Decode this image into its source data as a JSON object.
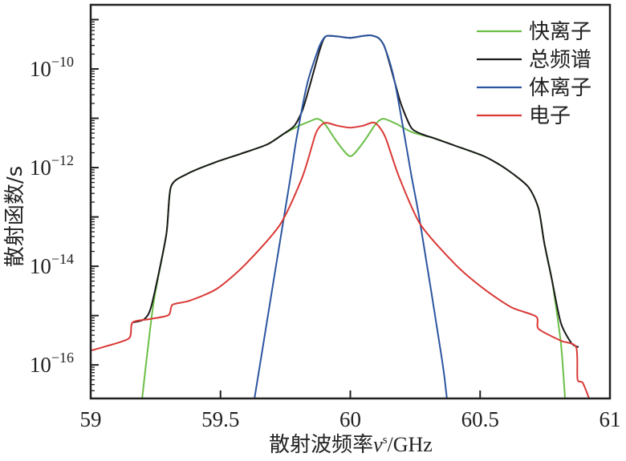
{
  "chart_data": {
    "type": "line",
    "title": "",
    "xlabel_main": "散射波频率",
    "xlabel_symbol": "ν",
    "xlabel_sup": "s",
    "xlabel_unit": "/GHz",
    "ylabel": "散射函数/s",
    "xlim": [
      59,
      61
    ],
    "ylim_log10": [
      -16.68,
      -8.7
    ],
    "yscale": "log",
    "grid": false,
    "legend_position": "top-right",
    "x_ticks": [
      {
        "value": 59,
        "label": "59"
      },
      {
        "value": 59.5,
        "label": "59.5"
      },
      {
        "value": 60,
        "label": "60"
      },
      {
        "value": 60.5,
        "label": "60.5"
      },
      {
        "value": 61,
        "label": "61"
      }
    ],
    "y_ticks": [
      {
        "exp": -10,
        "base": "10",
        "sup": "−10"
      },
      {
        "exp": -12,
        "base": "10",
        "sup": "−12"
      },
      {
        "exp": -14,
        "base": "10",
        "sup": "−14"
      },
      {
        "exp": -16,
        "base": "10",
        "sup": "−16"
      }
    ],
    "series": [
      {
        "name": "快离子",
        "color": "#6bbf47",
        "points_x_log10y": [
          [
            59.198,
            -16.68
          ],
          [
            59.241,
            -14.78
          ],
          [
            59.291,
            -13.37
          ],
          [
            59.309,
            -12.39
          ],
          [
            59.371,
            -12.13
          ],
          [
            59.476,
            -11.9
          ],
          [
            59.578,
            -11.72
          ],
          [
            59.68,
            -11.53
          ],
          [
            59.742,
            -11.32
          ],
          [
            59.804,
            -11.15
          ],
          [
            59.845,
            -11.06
          ],
          [
            59.872,
            -11.01
          ],
          [
            59.9,
            -11.1
          ],
          [
            59.949,
            -11.48
          ],
          [
            60.0,
            -11.77
          ],
          [
            60.051,
            -11.48
          ],
          [
            60.1,
            -11.1
          ],
          [
            60.128,
            -11.01
          ],
          [
            60.18,
            -11.12
          ],
          [
            60.236,
            -11.28
          ],
          [
            60.32,
            -11.4
          ],
          [
            60.406,
            -11.56
          ],
          [
            60.515,
            -11.77
          ],
          [
            60.598,
            -12.02
          ],
          [
            60.685,
            -12.39
          ],
          [
            60.725,
            -12.83
          ],
          [
            60.747,
            -13.53
          ],
          [
            60.777,
            -14.29
          ],
          [
            60.811,
            -15.56
          ],
          [
            60.827,
            -16.68
          ]
        ]
      },
      {
        "name": "总频谱",
        "color": "#1a1a1a",
        "points_x_log10y": [
          [
            59.161,
            -15.14
          ],
          [
            59.207,
            -15.07
          ],
          [
            59.235,
            -14.78
          ],
          [
            59.291,
            -13.37
          ],
          [
            59.309,
            -12.39
          ],
          [
            59.371,
            -12.13
          ],
          [
            59.476,
            -11.9
          ],
          [
            59.578,
            -11.72
          ],
          [
            59.68,
            -11.53
          ],
          [
            59.742,
            -11.32
          ],
          [
            59.785,
            -11.15
          ],
          [
            59.816,
            -10.83
          ],
          [
            59.847,
            -10.28
          ],
          [
            59.878,
            -9.69
          ],
          [
            59.895,
            -9.42
          ],
          [
            59.909,
            -9.33
          ],
          [
            59.95,
            -9.34
          ],
          [
            60.0,
            -9.37
          ],
          [
            60.05,
            -9.33
          ],
          [
            60.079,
            -9.32
          ],
          [
            60.11,
            -9.38
          ],
          [
            60.134,
            -9.58
          ],
          [
            60.172,
            -10.28
          ],
          [
            60.196,
            -10.72
          ],
          [
            60.236,
            -11.2
          ],
          [
            60.28,
            -11.33
          ],
          [
            60.32,
            -11.4
          ],
          [
            60.406,
            -11.56
          ],
          [
            60.515,
            -11.77
          ],
          [
            60.598,
            -12.02
          ],
          [
            60.685,
            -12.39
          ],
          [
            60.725,
            -12.83
          ],
          [
            60.747,
            -13.53
          ],
          [
            60.777,
            -14.29
          ],
          [
            60.811,
            -15.15
          ],
          [
            60.852,
            -15.56
          ],
          [
            60.879,
            -15.64
          ]
        ]
      },
      {
        "name": "体离子",
        "color": "#2c55a0",
        "points_x_log10y": [
          [
            59.631,
            -16.68
          ],
          [
            59.702,
            -14.37
          ],
          [
            59.77,
            -12.18
          ],
          [
            59.794,
            -11.37
          ],
          [
            59.835,
            -10.28
          ],
          [
            59.878,
            -9.58
          ],
          [
            59.895,
            -9.4
          ],
          [
            59.909,
            -9.33
          ],
          [
            59.95,
            -9.34
          ],
          [
            60.0,
            -9.37
          ],
          [
            60.05,
            -9.33
          ],
          [
            60.079,
            -9.32
          ],
          [
            60.11,
            -9.38
          ],
          [
            60.134,
            -9.58
          ],
          [
            60.172,
            -10.28
          ],
          [
            60.236,
            -12.18
          ],
          [
            60.27,
            -13.15
          ],
          [
            60.354,
            -15.92
          ],
          [
            60.372,
            -16.68
          ]
        ]
      },
      {
        "name": "电子",
        "color": "#d93a36",
        "points_x_log10y": [
          [
            59.0,
            -15.71
          ],
          [
            59.06,
            -15.62
          ],
          [
            59.148,
            -15.46
          ],
          [
            59.161,
            -15.14
          ],
          [
            59.229,
            -15.07
          ],
          [
            59.3,
            -14.99
          ],
          [
            59.315,
            -14.78
          ],
          [
            59.38,
            -14.7
          ],
          [
            59.485,
            -14.46
          ],
          [
            59.594,
            -13.97
          ],
          [
            59.73,
            -13.15
          ],
          [
            59.816,
            -12.18
          ],
          [
            59.866,
            -11.32
          ],
          [
            59.89,
            -11.13
          ],
          [
            59.909,
            -11.09
          ],
          [
            59.95,
            -11.15
          ],
          [
            60.0,
            -11.19
          ],
          [
            60.05,
            -11.15
          ],
          [
            60.094,
            -11.09
          ],
          [
            60.134,
            -11.37
          ],
          [
            60.187,
            -12.18
          ],
          [
            60.27,
            -13.15
          ],
          [
            60.406,
            -13.97
          ],
          [
            60.515,
            -14.46
          ],
          [
            60.62,
            -14.83
          ],
          [
            60.716,
            -15.02
          ],
          [
            60.725,
            -15.27
          ],
          [
            60.811,
            -15.51
          ],
          [
            60.87,
            -15.64
          ],
          [
            60.875,
            -16.29
          ],
          [
            60.895,
            -16.36
          ],
          [
            60.92,
            -16.68
          ]
        ]
      }
    ]
  }
}
